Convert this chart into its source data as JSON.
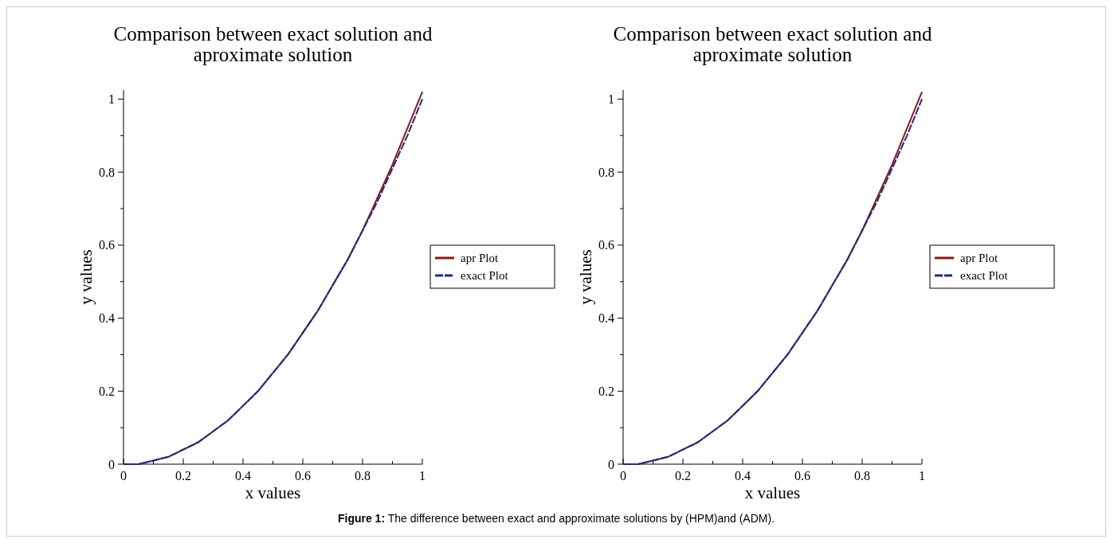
{
  "chart_data": [
    {
      "type": "line",
      "title": "Comparison between exact solution and aproximate solution",
      "xlabel": "x values",
      "ylabel": "y values",
      "x": [
        0,
        0.05,
        0.1,
        0.15,
        0.2,
        0.25,
        0.3,
        0.35,
        0.4,
        0.45,
        0.5,
        0.55,
        0.6,
        0.65,
        0.7,
        0.75,
        0.8,
        0.85,
        0.9,
        0.95,
        1
      ],
      "series": [
        {
          "name": "apr Plot",
          "color": "#8b1a1a",
          "line_style": "solid",
          "values": [
            0,
            0,
            0.01,
            0.02,
            0.04,
            0.06,
            0.09,
            0.12,
            0.16,
            0.2,
            0.25,
            0.3,
            0.36,
            0.42,
            0.49,
            0.56,
            0.64,
            0.73,
            0.82,
            0.92,
            1.02
          ]
        },
        {
          "name": "exact Plot",
          "color": "#1a2a8b",
          "line_style": "dashed",
          "values": [
            0,
            0,
            0.01,
            0.02,
            0.04,
            0.06,
            0.09,
            0.12,
            0.16,
            0.2,
            0.25,
            0.3,
            0.36,
            0.42,
            0.49,
            0.56,
            0.64,
            0.72,
            0.81,
            0.9,
            1.0
          ]
        }
      ],
      "xlim": [
        0,
        1.0
      ],
      "ylim": [
        0,
        1.025
      ],
      "xticks": [
        0,
        {
          "value": 0.1,
          "label": null
        },
        0.2,
        {
          "value": 0.3,
          "label": null
        },
        0.4,
        {
          "value": 0.5,
          "label": null
        },
        0.6,
        {
          "value": 0.7,
          "label": null
        },
        0.8,
        {
          "value": 0.9,
          "label": null
        },
        1
      ],
      "yticks": [
        0,
        {
          "value": 0.1,
          "label": null
        },
        0.2,
        {
          "value": 0.3,
          "label": null
        },
        0.4,
        {
          "value": 0.5,
          "label": null
        },
        0.6,
        {
          "value": 0.7,
          "label": null
        },
        0.8,
        {
          "value": 0.9,
          "label": null
        },
        1
      ],
      "grid": false,
      "legend": "right",
      "annotations": [
        "Figure 1: The difference between exact and approximate solutions by (HPM)and (ADM)."
      ]
    },
    {
      "type": "line",
      "title": "Comparison between exact solution and aproximate solution",
      "xlabel": "x values",
      "ylabel": "y values",
      "x": [
        0,
        0.05,
        0.1,
        0.15,
        0.2,
        0.25,
        0.3,
        0.35,
        0.4,
        0.45,
        0.5,
        0.55,
        0.6,
        0.65,
        0.7,
        0.75,
        0.8,
        0.85,
        0.9,
        0.95,
        1
      ],
      "series": [
        {
          "name": "apr Plot",
          "color": "#8b1a1a",
          "line_style": "solid",
          "values": [
            0,
            0,
            0.01,
            0.02,
            0.04,
            0.06,
            0.09,
            0.12,
            0.16,
            0.2,
            0.25,
            0.3,
            0.36,
            0.42,
            0.49,
            0.56,
            0.64,
            0.73,
            0.82,
            0.92,
            1.02
          ]
        },
        {
          "name": "exact Plot",
          "color": "#1a2a8b",
          "line_style": "dashed",
          "values": [
            0,
            0,
            0.01,
            0.02,
            0.04,
            0.06,
            0.09,
            0.12,
            0.16,
            0.2,
            0.25,
            0.3,
            0.36,
            0.42,
            0.49,
            0.56,
            0.64,
            0.72,
            0.81,
            0.9,
            1.0
          ]
        }
      ],
      "xlim": [
        0,
        1.0
      ],
      "ylim": [
        0,
        1.025
      ],
      "xticks": [
        0,
        {
          "value": 0.1,
          "label": null
        },
        0.2,
        {
          "value": 0.3,
          "label": null
        },
        0.4,
        {
          "value": 0.5,
          "label": null
        },
        0.6,
        {
          "value": 0.7,
          "label": null
        },
        0.8,
        {
          "value": 0.9,
          "label": null
        },
        1
      ],
      "yticks": [
        0,
        {
          "value": 0.1,
          "label": null
        },
        0.2,
        {
          "value": 0.3,
          "label": null
        },
        0.4,
        {
          "value": 0.5,
          "label": null
        },
        0.6,
        {
          "value": 0.7,
          "label": null
        },
        0.8,
        {
          "value": 0.9,
          "label": null
        },
        1
      ],
      "grid": false,
      "legend": "right"
    }
  ]
}
